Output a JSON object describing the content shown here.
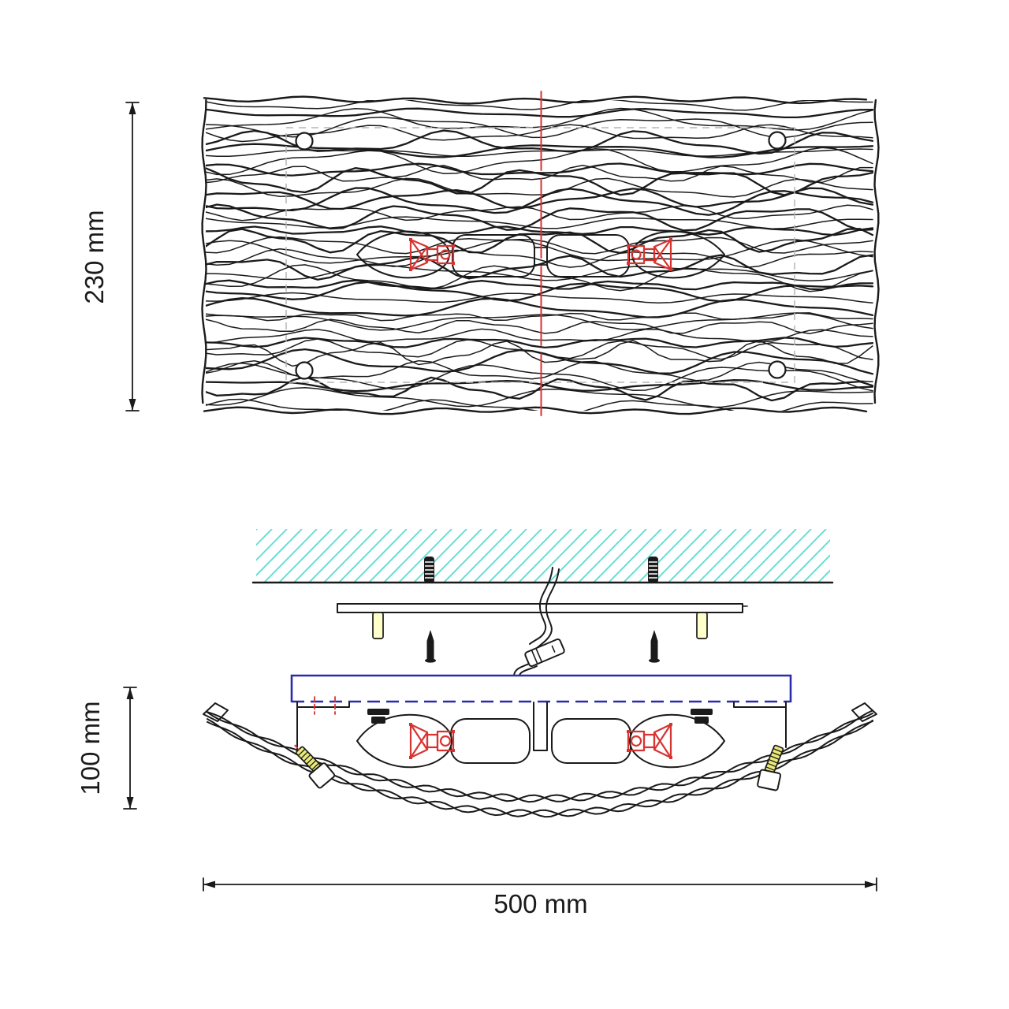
{
  "document": {
    "type": "technical-installation-drawing",
    "subject": "two-lamp wavy-glass ceiling light fixture",
    "views": {
      "top": "plan view of wavy glass diffuser with four mounting holes, two candle lamps and red vertical centerline",
      "front": "mounting section view with hatched ceiling, wall plugs, mounting bar, screws, supply wire with terminal block, blue canopy, two candle lamps and curved wavy glass shade fixed by two brass thumb screws"
    }
  },
  "dimensions": {
    "height_label": "230 mm",
    "depth_label": "100 mm",
    "width_label": "500 mm"
  },
  "icons": [
    {
      "name": "lamp-holder-icon",
      "meaning": "red E14 candle-lamp holder symbol",
      "count": 4
    },
    {
      "name": "centerline-icon",
      "meaning": "red dash centerline of symmetry"
    },
    {
      "name": "screw-icon",
      "meaning": "fixing screw pointing up",
      "count": 2
    },
    {
      "name": "wall-plug-icon",
      "meaning": "expansion plug set in ceiling",
      "count": 2
    },
    {
      "name": "terminal-block-icon",
      "meaning": "wire connector on supply cable"
    }
  ],
  "colors": {
    "line": "#1a1a1a",
    "accent_red": "#d63431",
    "canopy_blue": "#2b2bad",
    "ceiling_hatch": "#63ddd4",
    "guide_gray": "#b5b5b5",
    "brass_yellow": "#e9e97a",
    "standoff_yellow": "#ffffc9",
    "background": "#ffffff"
  }
}
